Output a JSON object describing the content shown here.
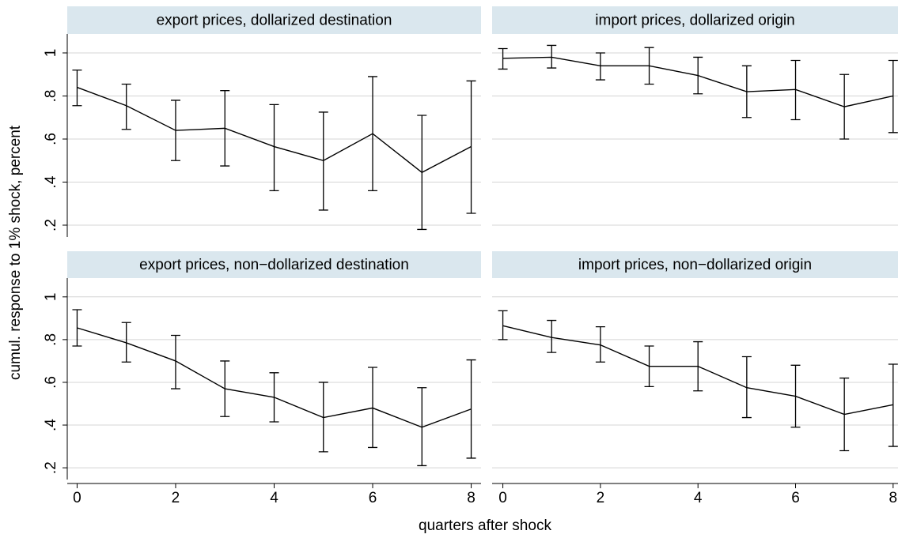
{
  "axis_labels": {
    "y": "cumul. response to 1% shock, percent",
    "x": "quarters after shock"
  },
  "chart_data": [
    {
      "type": "line",
      "title": "export prices, dollarized destination",
      "show_yaxis": true,
      "x": [
        0,
        1,
        2,
        3,
        4,
        5,
        6,
        7,
        8
      ],
      "series": [
        {
          "color": "#000000",
          "values": [
            0.84,
            0.755,
            0.64,
            0.65,
            0.565,
            0.5,
            0.625,
            0.445,
            0.565
          ],
          "lower": [
            0.755,
            0.645,
            0.5,
            0.475,
            0.36,
            0.27,
            0.36,
            0.18,
            0.255
          ],
          "upper": [
            0.92,
            0.855,
            0.78,
            0.825,
            0.76,
            0.725,
            0.89,
            0.71,
            0.87
          ]
        }
      ],
      "xlim": [
        -0.2,
        8.2
      ],
      "ylim": [
        0.145,
        1.088
      ],
      "yticks": [
        {
          "value": 0.2,
          "label": ".2"
        },
        {
          "value": 0.4,
          "label": ".4"
        },
        {
          "value": 0.6,
          "label": ".6"
        },
        {
          "value": 0.8,
          "label": ".8"
        },
        1
      ],
      "grid": true
    },
    {
      "type": "line",
      "title": "import prices, dollarized origin",
      "show_yaxis": false,
      "x": [
        0,
        1,
        2,
        3,
        4,
        5,
        6,
        7,
        8
      ],
      "series": [
        {
          "color": "#000000",
          "values": [
            0.975,
            0.98,
            0.94,
            0.94,
            0.895,
            0.82,
            0.83,
            0.75,
            0.8
          ],
          "lower": [
            0.925,
            0.93,
            0.875,
            0.855,
            0.81,
            0.7,
            0.69,
            0.6,
            0.63
          ],
          "upper": [
            1.02,
            1.035,
            1.0,
            1.025,
            0.98,
            0.94,
            0.965,
            0.9,
            0.965
          ]
        }
      ],
      "xlim": [
        -0.22,
        8.1
      ],
      "ylim": [
        0.145,
        1.088
      ],
      "yticks": [
        0.2,
        0.4,
        0.6,
        0.8,
        1
      ],
      "grid": true
    },
    {
      "type": "line",
      "title": "export prices, non−dollarized destination",
      "show_yaxis": true,
      "x": [
        0,
        1,
        2,
        3,
        4,
        5,
        6,
        7,
        8
      ],
      "series": [
        {
          "color": "#000000",
          "values": [
            0.855,
            0.785,
            0.7,
            0.57,
            0.53,
            0.435,
            0.48,
            0.39,
            0.475
          ],
          "lower": [
            0.77,
            0.695,
            0.57,
            0.44,
            0.415,
            0.275,
            0.295,
            0.21,
            0.245
          ],
          "upper": [
            0.94,
            0.88,
            0.82,
            0.7,
            0.645,
            0.6,
            0.67,
            0.575,
            0.705
          ]
        }
      ],
      "xlim": [
        -0.2,
        8.2
      ],
      "ylim": [
        0.145,
        1.088
      ],
      "yticks": [
        {
          "value": 0.2,
          "label": ".2"
        },
        {
          "value": 0.4,
          "label": ".4"
        },
        {
          "value": 0.6,
          "label": ".6"
        },
        {
          "value": 0.8,
          "label": ".8"
        },
        1
      ],
      "xticks": [
        0,
        2,
        4,
        6,
        8
      ],
      "grid": true
    },
    {
      "type": "line",
      "title": "import prices, non−dollarized origin",
      "show_yaxis": false,
      "x": [
        0,
        1,
        2,
        3,
        4,
        5,
        6,
        7,
        8
      ],
      "series": [
        {
          "color": "#000000",
          "values": [
            0.865,
            0.81,
            0.775,
            0.675,
            0.675,
            0.575,
            0.535,
            0.45,
            0.495
          ],
          "lower": [
            0.8,
            0.74,
            0.695,
            0.58,
            0.56,
            0.435,
            0.39,
            0.28,
            0.3
          ],
          "upper": [
            0.935,
            0.89,
            0.86,
            0.77,
            0.79,
            0.72,
            0.68,
            0.62,
            0.685
          ]
        }
      ],
      "xlim": [
        -0.22,
        8.1
      ],
      "ylim": [
        0.145,
        1.088
      ],
      "yticks": [
        0.2,
        0.4,
        0.6,
        0.8,
        1
      ],
      "xticks": [
        0,
        2,
        4,
        6,
        8
      ],
      "grid": true
    }
  ]
}
